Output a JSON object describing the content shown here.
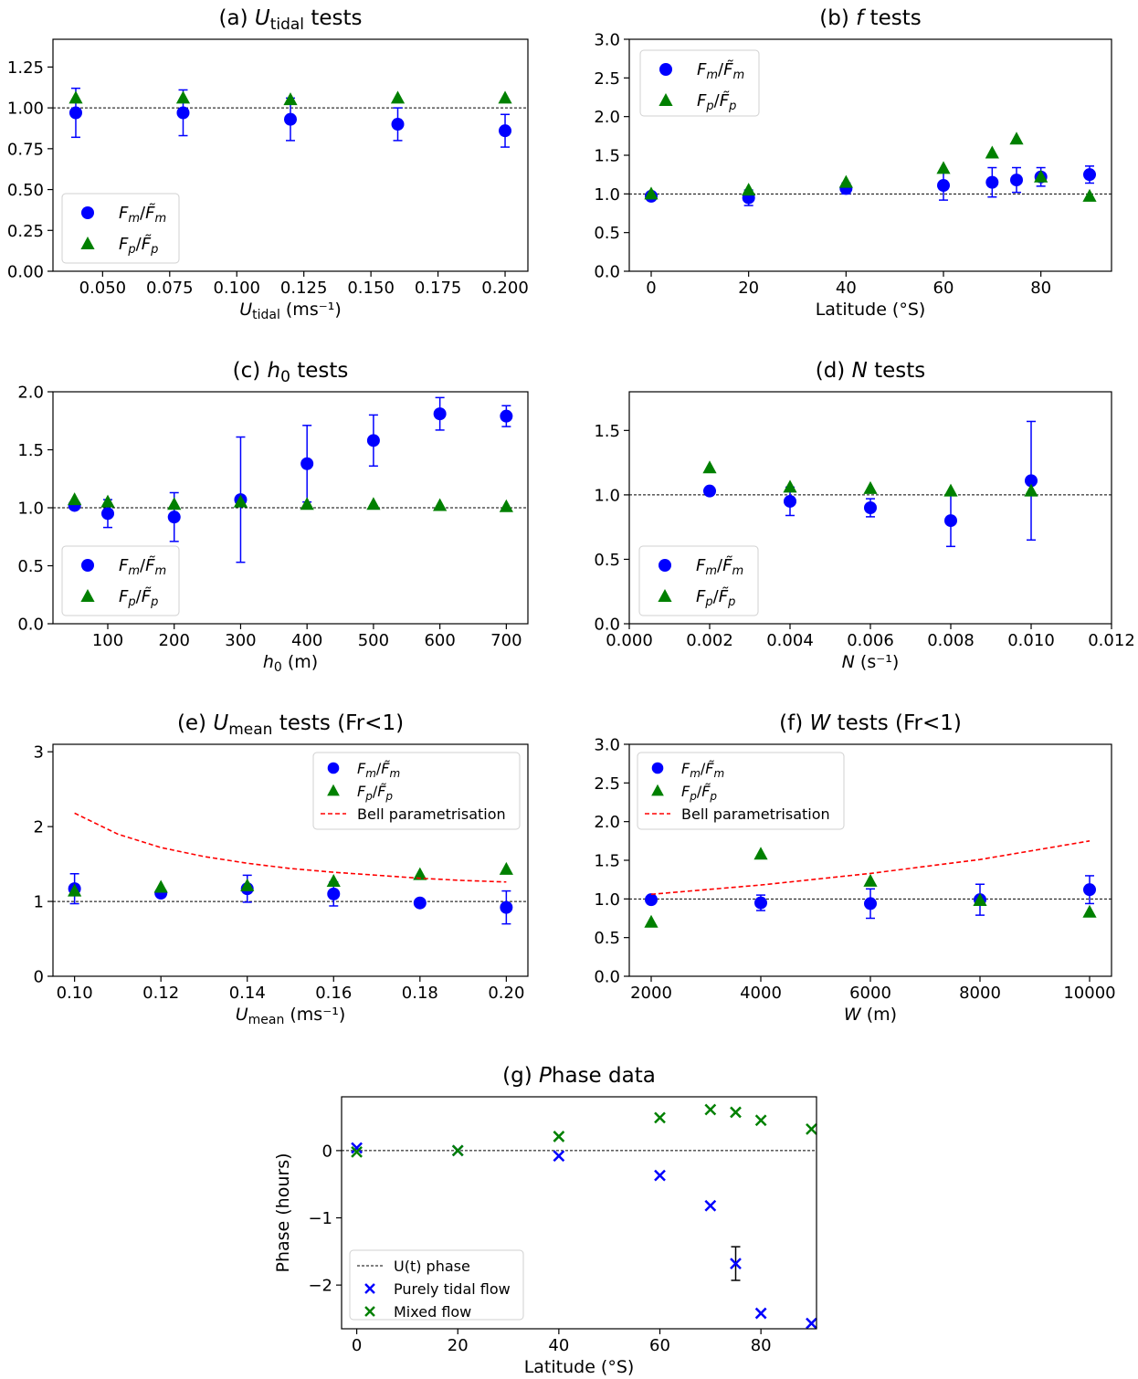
{
  "legend_labels": {
    "fm": "F_m/F̃_m",
    "fp": "F_p/F̃_p",
    "bell": "Bell parametrisation",
    "ut": "U(t) phase",
    "tidal": "Purely tidal flow",
    "mixed": "Mixed flow"
  },
  "colors": {
    "fm": "#0000ff",
    "fp": "#008000",
    "bell": "#ff0000",
    "ref": "#000000"
  },
  "chart_data": [
    {
      "id": "a",
      "type": "scatter",
      "title": "(a) U_tidal tests",
      "xlabel": "U_tidal (ms⁻¹)",
      "ylabel": "",
      "xlim": [
        0.0315,
        0.2085
      ],
      "ylim": [
        0,
        1.42
      ],
      "xticks": [
        0.05,
        0.075,
        0.1,
        0.125,
        0.15,
        0.175,
        0.2
      ],
      "xtick_labels": [
        "0.050",
        "0.075",
        "0.100",
        "0.125",
        "0.150",
        "0.175",
        "0.200"
      ],
      "yticks": [
        0,
        0.25,
        0.5,
        0.75,
        1.0,
        1.25
      ],
      "ytick_labels": [
        "0.00",
        "0.25",
        "0.50",
        "0.75",
        "1.00",
        "1.25"
      ],
      "refline": 1.0,
      "legend": "lower-left",
      "series": [
        {
          "name": "F_m/F̃_m",
          "marker": "circle",
          "x": [
            0.04,
            0.08,
            0.12,
            0.16,
            0.2
          ],
          "y": [
            0.97,
            0.97,
            0.93,
            0.9,
            0.86
          ],
          "err": [
            0.15,
            0.14,
            0.13,
            0.1,
            0.1
          ]
        },
        {
          "name": "F_p/F̃_p",
          "marker": "triangle",
          "x": [
            0.04,
            0.08,
            0.12,
            0.16,
            0.2
          ],
          "y": [
            1.06,
            1.06,
            1.05,
            1.06,
            1.06
          ]
        }
      ]
    },
    {
      "id": "b",
      "type": "scatter",
      "title": "(b) f tests",
      "xlabel": "Latitude (°S)",
      "ylabel": "",
      "xlim": [
        -4.5,
        94.5
      ],
      "ylim": [
        0,
        3.0
      ],
      "xticks": [
        0,
        20,
        40,
        60,
        80
      ],
      "xtick_labels": [
        "0",
        "20",
        "40",
        "60",
        "80"
      ],
      "yticks": [
        0,
        0.5,
        1.0,
        1.5,
        2.0,
        2.5,
        3.0
      ],
      "ytick_labels": [
        "0.0",
        "0.5",
        "1.0",
        "1.5",
        "2.0",
        "2.5",
        "3.0"
      ],
      "refline": 1.0,
      "legend": "upper-left",
      "series": [
        {
          "name": "F_m/F̃_m",
          "marker": "circle",
          "x": [
            0,
            20,
            40,
            60,
            70,
            75,
            80,
            90
          ],
          "y": [
            0.97,
            0.95,
            1.07,
            1.11,
            1.15,
            1.18,
            1.22,
            1.25
          ],
          "err": [
            0.04,
            0.1,
            0.07,
            0.19,
            0.19,
            0.16,
            0.12,
            0.11
          ]
        },
        {
          "name": "F_p/F̃_p",
          "marker": "triangle",
          "x": [
            0,
            20,
            40,
            60,
            70,
            75,
            80,
            90
          ],
          "y": [
            1.0,
            1.05,
            1.15,
            1.33,
            1.53,
            1.71,
            1.22,
            0.97
          ]
        }
      ]
    },
    {
      "id": "c",
      "type": "scatter",
      "title": "(c) h_0 tests",
      "xlabel": "h_0 (m)",
      "ylabel": "",
      "xlim": [
        17.5,
        732.5
      ],
      "ylim": [
        0,
        2.0
      ],
      "xticks": [
        100,
        200,
        300,
        400,
        500,
        600,
        700
      ],
      "xtick_labels": [
        "100",
        "200",
        "300",
        "400",
        "500",
        "600",
        "700"
      ],
      "yticks": [
        0,
        0.5,
        1.0,
        1.5,
        2.0
      ],
      "ytick_labels": [
        "0.0",
        "0.5",
        "1.0",
        "1.5",
        "2.0"
      ],
      "refline": 1.0,
      "legend": "lower-left",
      "series": [
        {
          "name": "F_m/F̃_m",
          "marker": "circle",
          "x": [
            50,
            100,
            200,
            300,
            400,
            500,
            600,
            700
          ],
          "y": [
            1.02,
            0.95,
            0.92,
            1.07,
            1.38,
            1.58,
            1.81,
            1.79
          ],
          "err": [
            0.0,
            0.12,
            0.21,
            0.54,
            0.33,
            0.22,
            0.14,
            0.09
          ]
        },
        {
          "name": "F_p/F̃_p",
          "marker": "triangle",
          "x": [
            50,
            100,
            200,
            300,
            400,
            500,
            600,
            700
          ],
          "y": [
            1.07,
            1.05,
            1.03,
            1.05,
            1.03,
            1.03,
            1.02,
            1.01
          ]
        }
      ]
    },
    {
      "id": "d",
      "type": "scatter",
      "title": "(d) N tests",
      "xlabel": "N (s⁻¹)",
      "ylabel": "",
      "xlim": [
        0,
        0.012
      ],
      "ylim": [
        0,
        1.8
      ],
      "xticks": [
        0,
        0.002,
        0.004,
        0.006,
        0.008,
        0.01,
        0.012
      ],
      "xtick_labels": [
        "0.000",
        "0.002",
        "0.004",
        "0.006",
        "0.008",
        "0.010",
        "0.012"
      ],
      "yticks": [
        0,
        0.5,
        1.0,
        1.5
      ],
      "ytick_labels": [
        "0.0",
        "0.5",
        "1.0",
        "1.5"
      ],
      "refline": 1.0,
      "legend": "lower-left",
      "series": [
        {
          "name": "F_m/F̃_m",
          "marker": "circle",
          "x": [
            0.002,
            0.004,
            0.006,
            0.008,
            0.01
          ],
          "y": [
            1.03,
            0.95,
            0.9,
            0.8,
            1.11
          ],
          "err": [
            0.0,
            0.11,
            0.07,
            0.2,
            0.46
          ]
        },
        {
          "name": "F_p/F̃_p",
          "marker": "triangle",
          "x": [
            0.002,
            0.004,
            0.006,
            0.008,
            0.01
          ],
          "y": [
            1.21,
            1.06,
            1.05,
            1.03,
            1.03
          ]
        }
      ]
    },
    {
      "id": "e",
      "type": "scatter",
      "title": "(e) U_mean tests (Fr<1)",
      "xlabel": "U_mean (ms⁻¹)",
      "ylabel": "",
      "xlim": [
        0.095,
        0.205
      ],
      "ylim": [
        0,
        3.1
      ],
      "xticks": [
        0.1,
        0.12,
        0.14,
        0.16,
        0.18,
        0.2
      ],
      "xtick_labels": [
        "0.10",
        "0.12",
        "0.14",
        "0.16",
        "0.18",
        "0.20"
      ],
      "yticks": [
        0,
        1,
        2,
        3
      ],
      "ytick_labels": [
        "0",
        "1",
        "2",
        "3"
      ],
      "refline": 1.0,
      "legend": "upper-right",
      "series": [
        {
          "name": "F_m/F̃_m",
          "marker": "circle",
          "x": [
            0.1,
            0.12,
            0.14,
            0.16,
            0.18,
            0.2
          ],
          "y": [
            1.17,
            1.11,
            1.17,
            1.1,
            0.98,
            0.92
          ],
          "err": [
            0.2,
            0.0,
            0.18,
            0.16,
            0.0,
            0.22
          ]
        },
        {
          "name": "F_p/F̃_p",
          "marker": "triangle",
          "x": [
            0.1,
            0.12,
            0.14,
            0.16,
            0.18,
            0.2
          ],
          "y": [
            1.14,
            1.19,
            1.21,
            1.27,
            1.36,
            1.43
          ]
        },
        {
          "name": "Bell parametrisation",
          "marker": "dashed-line",
          "x": [
            0.1,
            0.11,
            0.12,
            0.13,
            0.14,
            0.15,
            0.16,
            0.17,
            0.18,
            0.19,
            0.2
          ],
          "y": [
            2.18,
            1.9,
            1.72,
            1.6,
            1.51,
            1.44,
            1.39,
            1.35,
            1.31,
            1.28,
            1.26
          ]
        }
      ]
    },
    {
      "id": "f",
      "type": "scatter",
      "title": "(f) W tests (Fr<1)",
      "xlabel": "W (m)",
      "ylabel": "",
      "xlim": [
        1600,
        10400
      ],
      "ylim": [
        0,
        3.0
      ],
      "xticks": [
        2000,
        4000,
        6000,
        8000,
        10000
      ],
      "xtick_labels": [
        "2000",
        "4000",
        "6000",
        "8000",
        "10000"
      ],
      "yticks": [
        0,
        0.5,
        1.0,
        1.5,
        2.0,
        2.5,
        3.0
      ],
      "ytick_labels": [
        "0.0",
        "0.5",
        "1.0",
        "1.5",
        "2.0",
        "2.5",
        "3.0"
      ],
      "refline": 1.0,
      "legend": "upper-left",
      "series": [
        {
          "name": "F_m/F̃_m",
          "marker": "circle",
          "x": [
            2000,
            4000,
            6000,
            8000,
            10000
          ],
          "y": [
            0.99,
            0.95,
            0.94,
            0.99,
            1.12
          ],
          "err": [
            0.0,
            0.1,
            0.19,
            0.2,
            0.18
          ]
        },
        {
          "name": "F_p/F̃_p",
          "marker": "triangle",
          "x": [
            2000,
            4000,
            6000,
            8000,
            10000
          ],
          "y": [
            0.7,
            1.58,
            1.23,
            0.98,
            0.83
          ]
        },
        {
          "name": "Bell parametrisation",
          "marker": "dashed-line",
          "x": [
            2000,
            4000,
            6000,
            8000,
            10000
          ],
          "y": [
            1.06,
            1.18,
            1.33,
            1.51,
            1.75
          ]
        }
      ]
    },
    {
      "id": "g",
      "type": "scatter",
      "title": "(g) Phase data",
      "xlabel": "Latitude (°S)",
      "ylabel": "Phase (hours)",
      "xlim": [
        -3,
        91
      ],
      "ylim": [
        -2.65,
        0.8
      ],
      "xticks": [
        0,
        20,
        40,
        60,
        80
      ],
      "xtick_labels": [
        "0",
        "20",
        "40",
        "60",
        "80"
      ],
      "yticks": [
        0,
        -1,
        -2
      ],
      "ytick_labels": [
        "0",
        "−1",
        "−2"
      ],
      "refline": 0.0,
      "legend": "lower-left",
      "series": [
        {
          "name": "U(t) phase",
          "marker": "dashed-line"
        },
        {
          "name": "Purely tidal flow",
          "marker": "x",
          "x": [
            0,
            20,
            40,
            60,
            70,
            75,
            80,
            90
          ],
          "y": [
            0.04,
            0.0,
            -0.08,
            -0.37,
            -0.82,
            -1.68,
            -2.42,
            -2.57
          ],
          "err": [
            0,
            0,
            0,
            0,
            0,
            0.25,
            0,
            0
          ]
        },
        {
          "name": "Mixed flow",
          "marker": "x",
          "x": [
            0,
            20,
            40,
            60,
            70,
            75,
            80,
            90
          ],
          "y": [
            -0.02,
            0.0,
            0.21,
            0.49,
            0.61,
            0.57,
            0.45,
            0.32
          ]
        }
      ]
    }
  ]
}
